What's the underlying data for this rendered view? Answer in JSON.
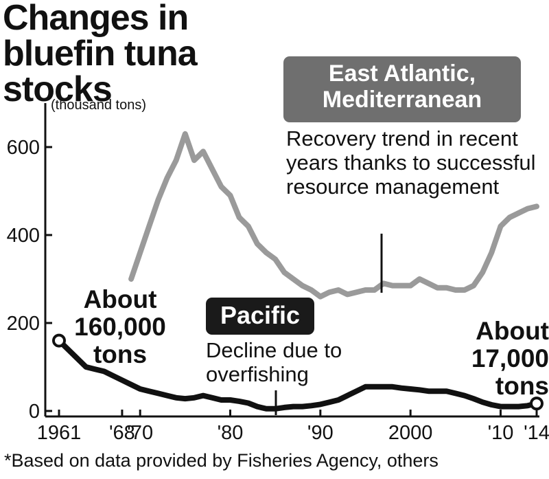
{
  "title": "Changes in bluefin tuna stocks",
  "unit_label": "(thousand tons)",
  "footnote": "*Based on data provided by Fisheries Agency, others",
  "annotations": {
    "east_atlantic_box": "East Atlantic, Mediterranean",
    "east_atlantic_note": "Recovery trend in recent years thanks to successful resource management",
    "pacific_box": "Pacific",
    "pacific_note": "Decline due to overfishing",
    "start_value": "About 160,000 tons",
    "end_value": "About 17,000 tons"
  },
  "colors": {
    "east_atlantic": "#9a9a9a",
    "pacific": "#111111",
    "east_atlantic_box": "#6f6f6f",
    "pacific_box": "#1a1a1a"
  },
  "chart_data": {
    "type": "line",
    "title": "Changes in bluefin tuna stocks",
    "ylabel": "(thousand tons)",
    "xlabel": "",
    "xlim": [
      1960,
      2015
    ],
    "ylim": [
      0,
      660
    ],
    "yticks": [
      0,
      200,
      400,
      600
    ],
    "xticks": [
      {
        "value": 1961,
        "label": "1961"
      },
      {
        "value": 1968,
        "label": "'68"
      },
      {
        "value": 1970,
        "label": "'70"
      },
      {
        "value": 1980,
        "label": "'80"
      },
      {
        "value": 1990,
        "label": "'90"
      },
      {
        "value": 2000,
        "label": "2000"
      },
      {
        "value": 2010,
        "label": "'10"
      },
      {
        "value": 2014,
        "label": "'14"
      }
    ],
    "grid": false,
    "series": [
      {
        "name": "East Atlantic, Mediterranean",
        "x": [
          1969,
          1970,
          1971,
          1972,
          1973,
          1974,
          1975,
          1976,
          1977,
          1978,
          1979,
          1980,
          1981,
          1982,
          1983,
          1984,
          1985,
          1986,
          1987,
          1988,
          1989,
          1990,
          1991,
          1992,
          1993,
          1994,
          1995,
          1996,
          1997,
          1998,
          1999,
          2000,
          2001,
          2002,
          2003,
          2004,
          2005,
          2006,
          2007,
          2008,
          2009,
          2010,
          2011,
          2012,
          2013,
          2014
        ],
        "y": [
          300,
          360,
          420,
          480,
          530,
          570,
          630,
          570,
          590,
          550,
          510,
          490,
          440,
          420,
          380,
          360,
          345,
          315,
          300,
          285,
          275,
          260,
          270,
          275,
          265,
          270,
          275,
          275,
          290,
          285,
          285,
          285,
          300,
          290,
          280,
          280,
          275,
          275,
          285,
          315,
          360,
          420,
          440,
          450,
          460,
          465
        ]
      },
      {
        "name": "Pacific",
        "x": [
          1961,
          1962,
          1963,
          1964,
          1965,
          1966,
          1967,
          1968,
          1969,
          1970,
          1971,
          1972,
          1973,
          1974,
          1975,
          1976,
          1977,
          1978,
          1979,
          1980,
          1981,
          1982,
          1983,
          1984,
          1985,
          1986,
          1987,
          1988,
          1989,
          1990,
          1991,
          1992,
          1993,
          1994,
          1995,
          1996,
          1997,
          1998,
          1999,
          2000,
          2001,
          2002,
          2003,
          2004,
          2005,
          2006,
          2007,
          2008,
          2009,
          2010,
          2011,
          2012,
          2013,
          2014
        ],
        "y": [
          160,
          140,
          120,
          100,
          95,
          90,
          80,
          70,
          60,
          50,
          45,
          40,
          35,
          30,
          28,
          30,
          35,
          30,
          25,
          25,
          22,
          18,
          10,
          5,
          5,
          8,
          10,
          10,
          12,
          15,
          20,
          25,
          35,
          45,
          55,
          55,
          55,
          55,
          52,
          50,
          48,
          45,
          45,
          45,
          40,
          35,
          28,
          20,
          14,
          10,
          10,
          10,
          12,
          17
        ]
      }
    ]
  }
}
